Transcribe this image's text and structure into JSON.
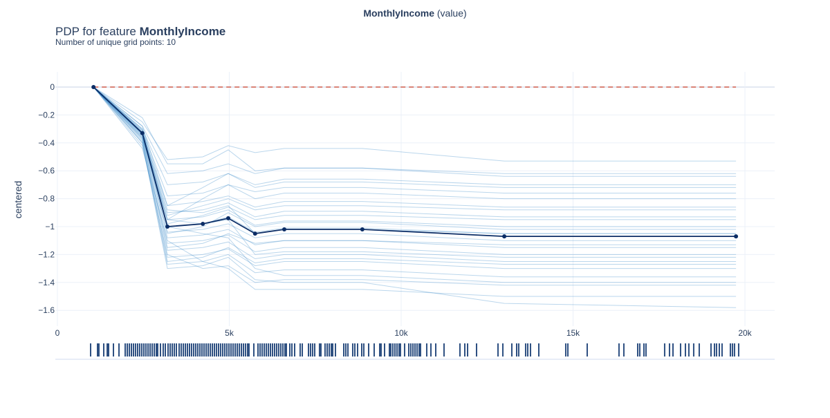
{
  "figure": {
    "top_title_bold": "MonthlyIncome",
    "top_title_rest": " (value)",
    "title_prefix": "PDP for feature ",
    "title_bold": "MonthlyIncome",
    "subtitle": "Number of unique grid points: 10"
  },
  "chart_data": {
    "type": "line",
    "xlabel": "",
    "ylabel": "centered",
    "xlim": [
      0,
      21000
    ],
    "ylim": [
      -1.68,
      0.1
    ],
    "grid": true,
    "x_ticks": [
      {
        "v": 0,
        "label": "0"
      },
      {
        "v": 5000,
        "label": "5k"
      },
      {
        "v": 10000,
        "label": "10k"
      },
      {
        "v": 15000,
        "label": "15k"
      },
      {
        "v": 20000,
        "label": "20k"
      }
    ],
    "y_ticks": [
      {
        "v": 0,
        "label": "0"
      },
      {
        "v": -0.2,
        "label": "−0.2"
      },
      {
        "v": -0.4,
        "label": "−0.4"
      },
      {
        "v": -0.6,
        "label": "−0.6"
      },
      {
        "v": -0.8,
        "label": "−0.8"
      },
      {
        "v": -1,
        "label": "−1"
      },
      {
        "v": -1.2,
        "label": "−1.2"
      },
      {
        "v": -1.4,
        "label": "−1.4"
      },
      {
        "v": -1.6,
        "label": "−1.6"
      }
    ],
    "grid_points": [
      1050,
      2470,
      3200,
      4230,
      4970,
      5750,
      6600,
      8870,
      13000,
      19740
    ],
    "pdp": [
      0,
      -0.33,
      -1.0,
      -0.98,
      -0.94,
      -1.05,
      -1.02,
      -1.02,
      -1.07,
      -1.07
    ],
    "reference_line": 0,
    "colors": {
      "pdp": "#0b2d66",
      "ice": "#3a8ac8",
      "reference": "#d6604d",
      "rug": "#08306b"
    },
    "ice_lines": [
      [
        0,
        -0.25,
        -0.52,
        -0.5,
        -0.42,
        -0.47,
        -0.44,
        -0.44,
        -0.53,
        -0.53
      ],
      [
        0,
        -0.28,
        -0.62,
        -0.6,
        -0.55,
        -0.62,
        -0.58,
        -0.58,
        -0.64,
        -0.64
      ],
      [
        0,
        -0.3,
        -0.7,
        -0.68,
        -0.62,
        -0.72,
        -0.68,
        -0.68,
        -0.72,
        -0.72
      ],
      [
        0,
        -0.31,
        -0.78,
        -0.76,
        -0.7,
        -0.8,
        -0.76,
        -0.76,
        -0.8,
        -0.8
      ],
      [
        0,
        -0.32,
        -0.85,
        -0.82,
        -0.78,
        -0.86,
        -0.82,
        -0.82,
        -0.86,
        -0.86
      ],
      [
        0,
        -0.33,
        -0.9,
        -0.88,
        -0.83,
        -0.93,
        -0.89,
        -0.89,
        -0.93,
        -0.93
      ],
      [
        0,
        -0.33,
        -0.95,
        -0.93,
        -0.88,
        -0.99,
        -0.96,
        -0.96,
        -1.0,
        -1.0
      ],
      [
        0,
        -0.34,
        -1.0,
        -0.98,
        -0.93,
        -1.04,
        -1.01,
        -1.01,
        -1.05,
        -1.05
      ],
      [
        0,
        -0.34,
        -1.04,
        -1.02,
        -0.98,
        -1.08,
        -1.05,
        -1.05,
        -1.1,
        -1.1
      ],
      [
        0,
        -0.35,
        -1.08,
        -1.06,
        -1.02,
        -1.13,
        -1.1,
        -1.1,
        -1.15,
        -1.15
      ],
      [
        0,
        -0.36,
        -1.12,
        -1.1,
        -1.06,
        -1.18,
        -1.15,
        -1.15,
        -1.2,
        -1.2
      ],
      [
        0,
        -0.37,
        -1.17,
        -1.15,
        -1.11,
        -1.23,
        -1.2,
        -1.2,
        -1.25,
        -1.25
      ],
      [
        0,
        -0.38,
        -1.22,
        -1.2,
        -1.16,
        -1.28,
        -1.25,
        -1.25,
        -1.3,
        -1.3
      ],
      [
        0,
        -0.4,
        -1.27,
        -1.25,
        -1.2,
        -1.33,
        -1.31,
        -1.31,
        -1.36,
        -1.36
      ],
      [
        0,
        -0.42,
        -1.2,
        -1.3,
        -1.28,
        -1.4,
        -1.38,
        -1.38,
        -1.42,
        -1.42
      ],
      [
        0,
        -0.44,
        -1.1,
        -1.25,
        -1.3,
        -1.45,
        -1.45,
        -1.45,
        -1.5,
        -1.5
      ],
      [
        0,
        -0.28,
        -0.85,
        -0.72,
        -0.62,
        -0.7,
        -0.66,
        -0.66,
        -0.7,
        -0.7
      ],
      [
        0,
        -0.3,
        -0.95,
        -0.8,
        -0.7,
        -0.75,
        -0.72,
        -0.72,
        -0.76,
        -0.76
      ],
      [
        0,
        -0.36,
        -0.95,
        -0.98,
        -0.95,
        -1.2,
        -1.18,
        -1.18,
        -1.22,
        -1.22
      ],
      [
        0,
        -0.34,
        -1.05,
        -1.0,
        -0.9,
        -1.0,
        -0.97,
        -0.97,
        -1.02,
        -1.02
      ],
      [
        0,
        -0.32,
        -0.98,
        -0.92,
        -0.86,
        -0.95,
        -0.92,
        -0.92,
        -0.95,
        -0.95
      ],
      [
        0,
        -0.37,
        -1.15,
        -1.12,
        -1.05,
        -1.12,
        -1.1,
        -1.1,
        -1.13,
        -1.13
      ],
      [
        0,
        -0.39,
        -1.25,
        -1.22,
        -1.15,
        -1.26,
        -1.23,
        -1.23,
        -1.27,
        -1.27
      ],
      [
        0,
        -0.22,
        -0.55,
        -0.55,
        -0.45,
        -0.6,
        -0.58,
        -0.58,
        -0.62,
        -0.62
      ],
      [
        0,
        -0.35,
        -1.0,
        -1.05,
        -1.08,
        -1.3,
        -1.35,
        -1.35,
        -1.4,
        -1.4
      ],
      [
        0,
        -0.33,
        -0.92,
        -0.85,
        -0.8,
        -0.88,
        -0.85,
        -0.85,
        -0.88,
        -0.88
      ],
      [
        0,
        -0.4,
        -1.3,
        -1.28,
        -1.22,
        -1.38,
        -1.4,
        -1.4,
        -1.55,
        -1.58
      ],
      [
        0,
        -0.31,
        -0.88,
        -0.9,
        -0.85,
        -1.05,
        -1.02,
        -1.02,
        -1.05,
        -1.05
      ]
    ],
    "rug": [
      966,
      1167,
      1207,
      1348,
      1449,
      1489,
      1630,
      1791,
      1972,
      2032,
      2092,
      2153,
      2213,
      2273,
      2334,
      2394,
      2455,
      2515,
      2575,
      2636,
      2696,
      2756,
      2817,
      2877,
      2917,
      2998,
      3078,
      3139,
      3219,
      3280,
      3340,
      3400,
      3461,
      3541,
      3601,
      3662,
      3722,
      3782,
      3843,
      3903,
      3964,
      4024,
      4084,
      4145,
      4205,
      4265,
      4326,
      4386,
      4447,
      4507,
      4567,
      4627,
      4688,
      4748,
      4809,
      4869,
      4929,
      4990,
      5050,
      5110,
      5171,
      5231,
      5291,
      5352,
      5412,
      5472,
      5533,
      5573,
      5714,
      5835,
      5895,
      5955,
      6016,
      6076,
      6136,
      6197,
      6257,
      6318,
      6378,
      6438,
      6499,
      6559,
      6619,
      6660,
      6760,
      6821,
      6901,
      7062,
      7123,
      7304,
      7364,
      7424,
      7485,
      7625,
      7666,
      7786,
      7847,
      7907,
      7967,
      8008,
      8088,
      8330,
      8390,
      8451,
      8591,
      8652,
      8732,
      8853,
      8913,
      9054,
      9215,
      9376,
      9416,
      9517,
      9658,
      9698,
      9758,
      9819,
      9879,
      9939,
      9979,
      10100,
      10221,
      10281,
      10342,
      10402,
      10462,
      10523,
      10563,
      10744,
      10865,
      11006,
      11247,
      11710,
      11851,
      11932,
      12193,
      12817,
      12958,
      13219,
      13360,
      13420,
      13621,
      13682,
      13762,
      14004,
      14788,
      14849,
      15412,
      16337,
      16478,
      16881,
      16941,
      17062,
      17122,
      17665,
      17806,
      17907,
      18128,
      18269,
      18369,
      18510,
      18671,
      19013,
      19114,
      19174,
      19255,
      19335,
      19577,
      19637,
      19697,
      19818
    ]
  }
}
